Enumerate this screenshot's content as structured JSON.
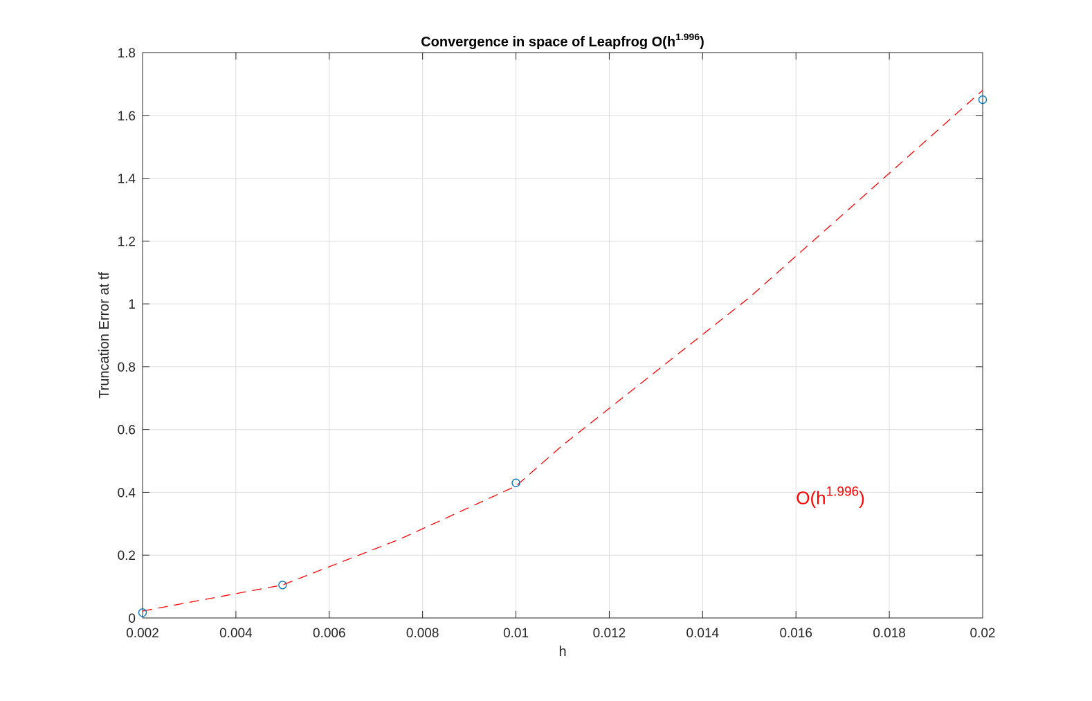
{
  "chart_data": {
    "type": "line",
    "title": "Convergence in space of Leapfrog O(h",
    "title_exponent": "1.996",
    "title_suffix": ")",
    "xlabel": "h",
    "ylabel": "Truncation Error at tf",
    "xlim": [
      0.002,
      0.02
    ],
    "ylim": [
      0,
      1.8
    ],
    "x_ticks": [
      0.002,
      0.004,
      0.006,
      0.008,
      0.01,
      0.012,
      0.014,
      0.016,
      0.018,
      0.02
    ],
    "x_tick_labels": [
      "0.002",
      "0.004",
      "0.006",
      "0.008",
      "0.01",
      "0.012",
      "0.014",
      "0.016",
      "0.018",
      "0.02"
    ],
    "y_ticks": [
      0,
      0.2,
      0.4,
      0.6,
      0.8,
      1,
      1.2,
      1.4,
      1.6,
      1.8
    ],
    "y_tick_labels": [
      "0",
      "0.2",
      "0.4",
      "0.6",
      "0.8",
      "1",
      "1.2",
      "1.4",
      "1.6",
      "1.8"
    ],
    "grid": true,
    "series": [
      {
        "style": "markers",
        "marker": "circle",
        "color": "#0072BD",
        "x": [
          0.002,
          0.005,
          0.01,
          0.02
        ],
        "y": [
          0.017,
          0.105,
          0.43,
          1.65
        ]
      },
      {
        "style": "dashed-line",
        "color": "#FF0000",
        "x": [
          0.002,
          0.005,
          0.0075,
          0.01,
          0.011,
          0.015,
          0.02
        ],
        "y": [
          0.022,
          0.105,
          0.25,
          0.42,
          0.55,
          1.02,
          1.68
        ]
      }
    ],
    "annotation": {
      "text": "O(h",
      "exponent": "1.996",
      "suffix": ")",
      "color": "#FF0000",
      "x": 0.016,
      "y": 0.385
    }
  }
}
